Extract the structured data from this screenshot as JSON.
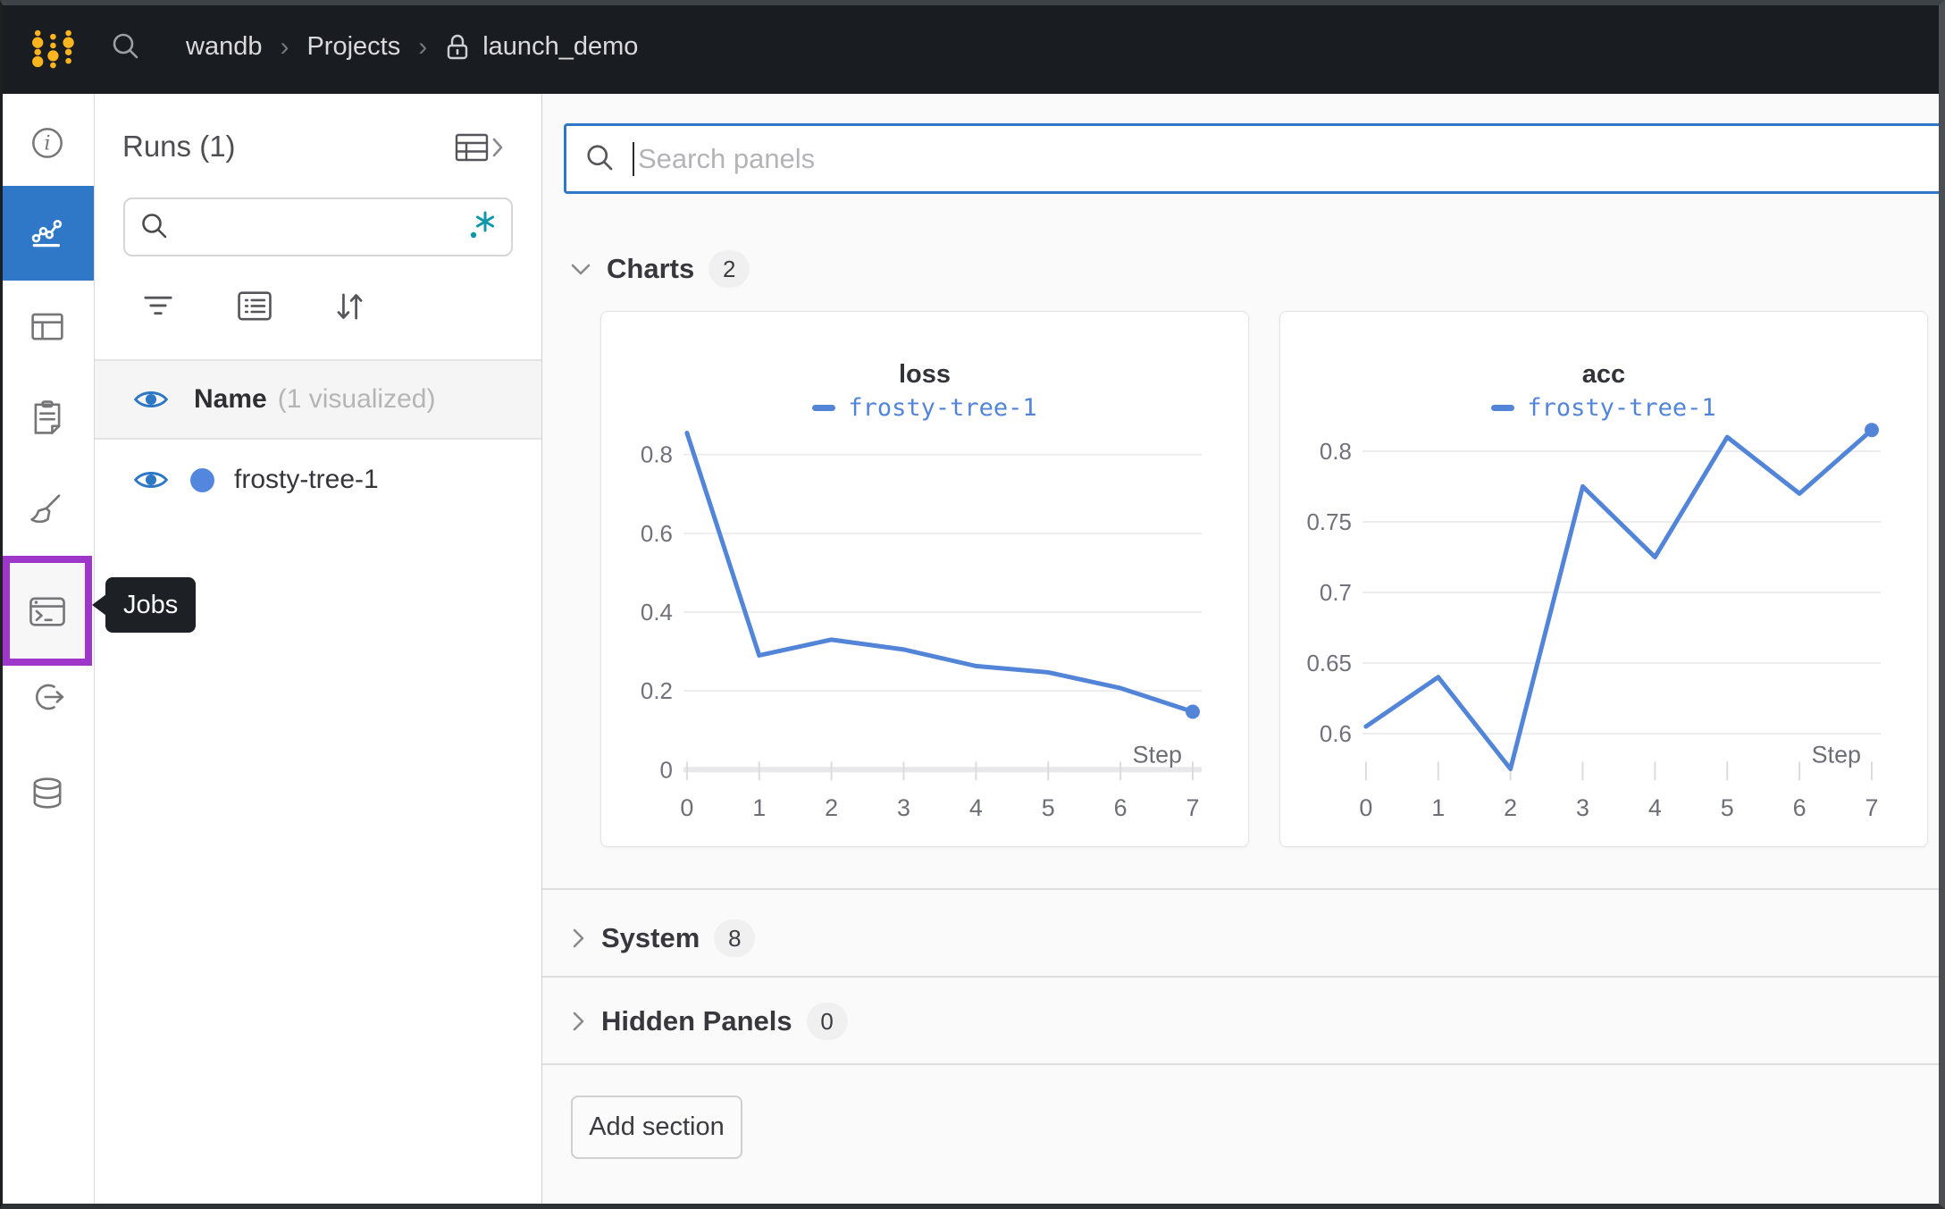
{
  "topbar": {
    "bg": "#191c20",
    "logo_color": "#fcb41f",
    "breadcrumb": {
      "separator": "›",
      "items": [
        {
          "label": "wandb"
        },
        {
          "label": "Projects"
        },
        {
          "label": "launch_demo",
          "locked": true
        }
      ]
    }
  },
  "sidebar": {
    "active_bg": "#2e78c7",
    "highlight_color": "#9e36c9",
    "items": [
      {
        "id": "overview"
      },
      {
        "id": "workspace",
        "active": true
      },
      {
        "id": "tables"
      },
      {
        "id": "reports"
      },
      {
        "id": "sweeps"
      },
      {
        "id": "jobs",
        "highlighted": true
      },
      {
        "id": "automations"
      },
      {
        "id": "artifacts"
      }
    ],
    "tooltip": {
      "label": "Jobs",
      "bg": "#1d2125",
      "text_color": "#ffffff"
    }
  },
  "runs_panel": {
    "title": "Runs (1)",
    "search_value": "",
    "regex_icon_color": "#0e97a7",
    "header_row": {
      "label": "Name",
      "sublabel": "(1 visualized)"
    },
    "runs": [
      {
        "name": "frosty-tree-1",
        "color": "#5387dd",
        "visible": true
      }
    ]
  },
  "main": {
    "bg": "#fafafa",
    "search_panels": {
      "placeholder": "Search panels",
      "focus_border": "#2e78c7"
    },
    "sections": [
      {
        "label": "Charts",
        "count": "2",
        "expanded": true
      },
      {
        "label": "System",
        "count": "8",
        "expanded": false
      },
      {
        "label": "Hidden Panels",
        "count": "0",
        "expanded": false
      }
    ],
    "add_section_label": "Add section"
  },
  "chart_data": [
    {
      "type": "line",
      "title": "loss",
      "xlabel": "Step",
      "x_ticks": [
        0,
        1,
        2,
        3,
        4,
        5,
        6,
        7
      ],
      "y_ticks": [
        0,
        0.2,
        0.4,
        0.6,
        0.8
      ],
      "ylim": [
        0,
        0.891
      ],
      "grid": true,
      "legend_position": "top",
      "show_zero_axis_bar": true,
      "end_marker": true,
      "series": [
        {
          "name": "frosty-tree-1",
          "color": "#5285d8",
          "x": [
            0,
            1,
            2,
            3,
            4,
            5,
            6,
            7
          ],
          "y": [
            0.855,
            0.29,
            0.33,
            0.305,
            0.263,
            0.247,
            0.207,
            0.147
          ]
        }
      ]
    },
    {
      "type": "line",
      "title": "acc",
      "xlabel": "Step",
      "x_ticks": [
        0,
        1,
        2,
        3,
        4,
        5,
        6,
        7
      ],
      "y_ticks": [
        0.6,
        0.65,
        0.7,
        0.75,
        0.8
      ],
      "ylim": [
        0.5745,
        0.823
      ],
      "grid": true,
      "legend_position": "top",
      "show_zero_axis_bar": false,
      "end_marker": true,
      "series": [
        {
          "name": "frosty-tree-1",
          "color": "#5285d8",
          "x": [
            0,
            1,
            2,
            3,
            4,
            5,
            6,
            7
          ],
          "y": [
            0.605,
            0.64,
            0.575,
            0.775,
            0.725,
            0.81,
            0.77,
            0.815
          ]
        }
      ]
    }
  ]
}
